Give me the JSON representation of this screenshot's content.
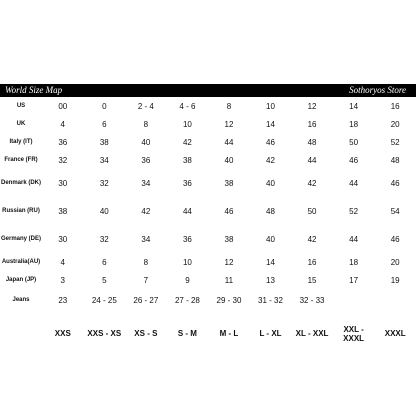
{
  "header": {
    "left": "World Size Map",
    "right": "Sothoryos Store"
  },
  "rows": [
    {
      "label": "US",
      "cells": [
        "00",
        "0",
        "2 - 4",
        "4 - 6",
        "8",
        "10",
        "12",
        "14",
        "16"
      ]
    },
    {
      "label": "UK",
      "cells": [
        "4",
        "6",
        "8",
        "10",
        "12",
        "14",
        "16",
        "18",
        "20"
      ]
    },
    {
      "label": "Italy (IT)",
      "cells": [
        "36",
        "38",
        "40",
        "42",
        "44",
        "46",
        "48",
        "50",
        "52"
      ]
    },
    {
      "label": "France (FR)",
      "cells": [
        "32",
        "34",
        "36",
        "38",
        "40",
        "42",
        "44",
        "46",
        "48"
      ]
    },
    {
      "label": "Denmark (DK)",
      "cells": [
        "30",
        "32",
        "34",
        "36",
        "38",
        "40",
        "42",
        "44",
        "46"
      ]
    },
    {
      "label": "Russian (RU)",
      "cells": [
        "38",
        "40",
        "42",
        "44",
        "46",
        "48",
        "50",
        "52",
        "54"
      ]
    },
    {
      "label": "Germany (DE)",
      "cells": [
        "30",
        "32",
        "34",
        "36",
        "38",
        "40",
        "42",
        "44",
        "46"
      ]
    },
    {
      "label": "Australia(AU)",
      "cells": [
        "4",
        "6",
        "8",
        "10",
        "12",
        "14",
        "16",
        "18",
        "20"
      ]
    },
    {
      "label": "Japan (JP)",
      "cells": [
        "3",
        "5",
        "7",
        "9",
        "11",
        "13",
        "15",
        "17",
        "19"
      ]
    },
    {
      "label": "Jeans",
      "cells": [
        "23",
        "24 - 25",
        "26 - 27",
        "27 - 28",
        "29 - 30",
        "31 - 32",
        "32 - 33",
        "",
        ""
      ]
    }
  ],
  "sizes": [
    "XXS",
    "XXS - XS",
    "XS - S",
    "S - M",
    "M - L",
    "L - XL",
    "XL - XXL",
    "XXL - XXXL",
    "XXXL"
  ]
}
